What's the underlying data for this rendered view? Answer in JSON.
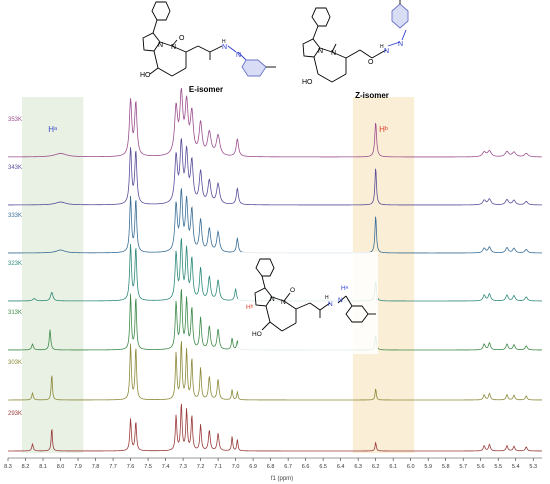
{
  "structures": {
    "e_isomer": {
      "title": "E-isomer",
      "atoms": [
        "N",
        "N",
        "O",
        "N",
        "N",
        "H",
        "HO"
      ]
    },
    "z_isomer": {
      "title": "Z-isomer",
      "atoms": [
        "N",
        "N",
        "O",
        "H",
        "N",
        "N",
        "HO"
      ]
    },
    "inset": {
      "atoms": [
        "N",
        "N",
        "O",
        "H",
        "N",
        "N",
        "Hᵃ",
        "Hᵇ",
        "HO"
      ]
    }
  },
  "regions": {
    "ha": {
      "label": "Hᵃ",
      "range": [
        8.22,
        7.87
      ],
      "color": "#e6f0e0"
    },
    "hb": {
      "label": "Hᵇ",
      "range": [
        6.33,
        5.98
      ],
      "color": "#fbecd2"
    }
  },
  "chart_data": {
    "type": "line",
    "xlabel": "f1 (ppm)",
    "xlim": [
      8.3,
      5.25
    ],
    "xticks": [
      8.3,
      8.2,
      8.1,
      8.0,
      7.9,
      7.8,
      7.7,
      7.6,
      7.5,
      7.4,
      7.3,
      7.2,
      7.1,
      7.0,
      6.9,
      6.8,
      6.7,
      6.6,
      6.5,
      6.4,
      6.3,
      6.2,
      6.1,
      6.0,
      5.9,
      5.8,
      5.7,
      5.6,
      5.5,
      5.4,
      5.3
    ],
    "series": [
      {
        "name": "353K",
        "color": "#9c4f8e",
        "peaks": [
          [
            8.0,
            6,
            0.04
          ],
          [
            7.6,
            95,
            0.008
          ],
          [
            7.57,
            90,
            0.008
          ],
          [
            7.34,
            80,
            0.01
          ],
          [
            7.31,
            100,
            0.01
          ],
          [
            7.28,
            85,
            0.01
          ],
          [
            7.25,
            70,
            0.01
          ],
          [
            7.2,
            55,
            0.01
          ],
          [
            7.15,
            40,
            0.012
          ],
          [
            7.1,
            35,
            0.012
          ],
          [
            6.99,
            30,
            0.008
          ],
          [
            6.2,
            60,
            0.006
          ],
          [
            5.58,
            8,
            0.012
          ],
          [
            5.55,
            10,
            0.012
          ],
          [
            5.45,
            9,
            0.012
          ],
          [
            5.41,
            8,
            0.012
          ],
          [
            5.34,
            6,
            0.012
          ]
        ]
      },
      {
        "name": "343K",
        "color": "#5a4d99",
        "peaks": [
          [
            8.0,
            5,
            0.035
          ],
          [
            7.6,
            95,
            0.007
          ],
          [
            7.57,
            90,
            0.007
          ],
          [
            7.34,
            80,
            0.009
          ],
          [
            7.31,
            100,
            0.009
          ],
          [
            7.28,
            85,
            0.009
          ],
          [
            7.25,
            70,
            0.009
          ],
          [
            7.2,
            55,
            0.009
          ],
          [
            7.15,
            40,
            0.01
          ],
          [
            7.1,
            35,
            0.01
          ],
          [
            6.99,
            28,
            0.007
          ],
          [
            6.2,
            65,
            0.005
          ],
          [
            5.58,
            8,
            0.01
          ],
          [
            5.55,
            10,
            0.01
          ],
          [
            5.45,
            9,
            0.01
          ],
          [
            5.41,
            8,
            0.01
          ],
          [
            5.34,
            6,
            0.01
          ]
        ]
      },
      {
        "name": "333K",
        "color": "#3a6e96",
        "peaks": [
          [
            8.0,
            5,
            0.03
          ],
          [
            7.6,
            95,
            0.006
          ],
          [
            7.57,
            90,
            0.006
          ],
          [
            7.34,
            80,
            0.008
          ],
          [
            7.31,
            100,
            0.008
          ],
          [
            7.28,
            85,
            0.008
          ],
          [
            7.25,
            70,
            0.008
          ],
          [
            7.2,
            55,
            0.008
          ],
          [
            7.15,
            40,
            0.009
          ],
          [
            7.1,
            35,
            0.009
          ],
          [
            6.99,
            25,
            0.006
          ],
          [
            6.2,
            65,
            0.005
          ],
          [
            5.58,
            8,
            0.009
          ],
          [
            5.55,
            10,
            0.009
          ],
          [
            5.45,
            9,
            0.009
          ],
          [
            5.41,
            8,
            0.009
          ],
          [
            5.34,
            6,
            0.009
          ]
        ]
      },
      {
        "name": "323K",
        "color": "#2e8a7a",
        "peaks": [
          [
            8.15,
            4,
            0.01
          ],
          [
            8.05,
            15,
            0.008
          ],
          [
            7.6,
            95,
            0.006
          ],
          [
            7.57,
            90,
            0.006
          ],
          [
            7.34,
            80,
            0.007
          ],
          [
            7.31,
            100,
            0.007
          ],
          [
            7.28,
            85,
            0.007
          ],
          [
            7.25,
            70,
            0.007
          ],
          [
            7.2,
            55,
            0.007
          ],
          [
            7.15,
            40,
            0.008
          ],
          [
            7.1,
            35,
            0.008
          ],
          [
            7.0,
            20,
            0.006
          ],
          [
            6.2,
            35,
            0.005
          ],
          [
            5.58,
            10,
            0.008
          ],
          [
            5.55,
            12,
            0.008
          ],
          [
            5.45,
            10,
            0.008
          ],
          [
            5.41,
            9,
            0.008
          ],
          [
            5.34,
            7,
            0.008
          ]
        ]
      },
      {
        "name": "313K",
        "color": "#3e8a4a",
        "peaks": [
          [
            8.16,
            10,
            0.006
          ],
          [
            8.06,
            35,
            0.005
          ],
          [
            7.6,
            95,
            0.005
          ],
          [
            7.57,
            90,
            0.005
          ],
          [
            7.34,
            80,
            0.006
          ],
          [
            7.31,
            100,
            0.006
          ],
          [
            7.28,
            85,
            0.006
          ],
          [
            7.25,
            70,
            0.006
          ],
          [
            7.2,
            55,
            0.006
          ],
          [
            7.15,
            40,
            0.007
          ],
          [
            7.1,
            35,
            0.007
          ],
          [
            7.02,
            20,
            0.005
          ],
          [
            6.99,
            15,
            0.005
          ],
          [
            6.2,
            25,
            0.005
          ],
          [
            5.58,
            10,
            0.007
          ],
          [
            5.55,
            12,
            0.007
          ],
          [
            5.45,
            10,
            0.007
          ],
          [
            5.41,
            9,
            0.007
          ],
          [
            5.34,
            7,
            0.007
          ]
        ]
      },
      {
        "name": "303K",
        "color": "#8c8a3a",
        "peaks": [
          [
            8.16,
            12,
            0.005
          ],
          [
            8.05,
            45,
            0.004
          ],
          [
            7.6,
            95,
            0.005
          ],
          [
            7.57,
            90,
            0.005
          ],
          [
            7.34,
            80,
            0.005
          ],
          [
            7.31,
            100,
            0.005
          ],
          [
            7.28,
            85,
            0.005
          ],
          [
            7.25,
            70,
            0.005
          ],
          [
            7.2,
            55,
            0.005
          ],
          [
            7.15,
            40,
            0.006
          ],
          [
            7.1,
            35,
            0.006
          ],
          [
            7.02,
            18,
            0.004
          ],
          [
            6.99,
            14,
            0.004
          ],
          [
            6.2,
            20,
            0.004
          ],
          [
            5.58,
            9,
            0.006
          ],
          [
            5.55,
            11,
            0.006
          ],
          [
            5.45,
            9,
            0.006
          ],
          [
            5.41,
            8,
            0.006
          ],
          [
            5.34,
            7,
            0.006
          ]
        ]
      },
      {
        "name": "293K",
        "color": "#9a3a3a",
        "peaks": [
          [
            8.16,
            12,
            0.005
          ],
          [
            8.05,
            40,
            0.004
          ],
          [
            7.6,
            55,
            0.005
          ],
          [
            7.57,
            50,
            0.005
          ],
          [
            7.34,
            60,
            0.005
          ],
          [
            7.31,
            80,
            0.005
          ],
          [
            7.28,
            70,
            0.005
          ],
          [
            7.25,
            60,
            0.005
          ],
          [
            7.2,
            45,
            0.005
          ],
          [
            7.15,
            35,
            0.006
          ],
          [
            7.1,
            30,
            0.006
          ],
          [
            7.02,
            25,
            0.004
          ],
          [
            6.99,
            20,
            0.004
          ],
          [
            6.2,
            15,
            0.004
          ],
          [
            5.58,
            9,
            0.006
          ],
          [
            5.55,
            11,
            0.006
          ],
          [
            5.45,
            9,
            0.006
          ],
          [
            5.41,
            8,
            0.006
          ],
          [
            5.34,
            7,
            0.006
          ]
        ]
      }
    ]
  }
}
